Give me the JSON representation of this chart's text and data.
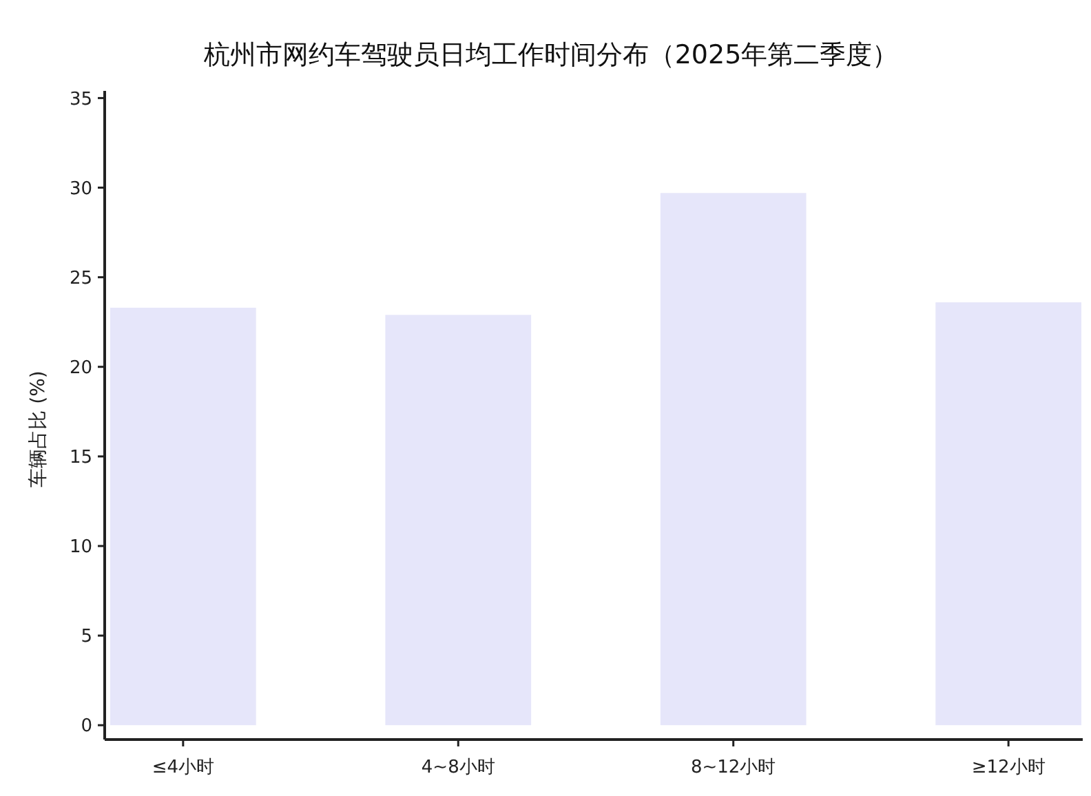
{
  "chart_data": {
    "type": "bar",
    "title": "杭州市网约车驾驶员日均工作时间分布（2025年第二季度）",
    "ylabel": "车辆占比 (%)",
    "categories": [
      "≤4小时",
      "4~8小时",
      "8~12小时",
      "≥12小时"
    ],
    "values": [
      23.3,
      22.9,
      29.7,
      23.6
    ],
    "color": "#e6e6fa",
    "ylim": [
      -0.8,
      35.4
    ],
    "yticks": [
      0,
      5,
      10,
      15,
      20,
      25,
      30,
      35
    ]
  }
}
